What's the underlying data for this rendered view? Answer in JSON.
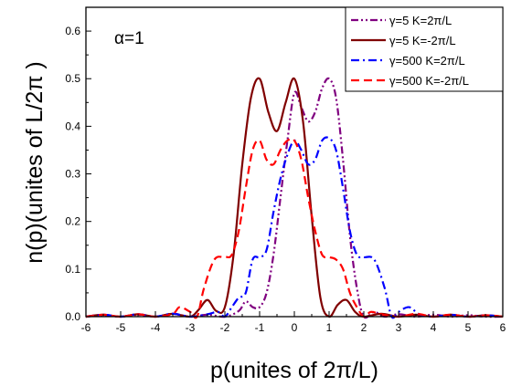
{
  "chart_data": {
    "type": "line",
    "xlabel": "p(unites of 2π/L)",
    "ylabel": "n(p)(unites of L/2π )",
    "xlim": [
      -6,
      6
    ],
    "ylim": [
      0,
      0.65
    ],
    "xticks": [
      -6,
      -5,
      -4,
      -3,
      -2,
      -1,
      0,
      1,
      2,
      3,
      4,
      5,
      6
    ],
    "xtick_labels": [
      "-6",
      "-5",
      "-4",
      "-3",
      "-2",
      "-1",
      "0",
      "1",
      "2",
      "3",
      "4",
      "5",
      "6"
    ],
    "yticks": [
      0.0,
      0.1,
      0.2,
      0.3,
      0.4,
      0.5,
      0.6
    ],
    "ytick_labels": [
      "0.0",
      "0.1",
      "0.2",
      "0.3",
      "0.4",
      "0.5",
      "0.6"
    ],
    "annotation": "α=1",
    "grid": false,
    "legend_position": "top-right",
    "series": [
      {
        "name": "γ=5 K=2π/L",
        "color": "#800080",
        "dash": "dash-dot-dot",
        "x": [
          -6,
          -5.5,
          -5,
          -4.5,
          -4,
          -3.5,
          -3,
          -2.5,
          -2.0,
          -1.6,
          -1.4,
          -1.2,
          -1.0,
          -0.8,
          -0.6,
          -0.4,
          -0.2,
          0.0,
          0.2,
          0.4,
          0.6,
          0.8,
          1.0,
          1.2,
          1.4,
          1.6,
          1.8,
          2.0,
          2.3,
          2.6,
          3.0,
          3.5,
          4.0,
          4.5,
          5.0,
          5.5,
          6.0
        ],
        "values": [
          0.0,
          0.003,
          0.0,
          0.004,
          0.0,
          0.006,
          0.0,
          0.004,
          0.0,
          0.012,
          0.032,
          0.02,
          0.02,
          0.05,
          0.13,
          0.25,
          0.37,
          0.47,
          0.44,
          0.41,
          0.43,
          0.48,
          0.5,
          0.46,
          0.33,
          0.17,
          0.06,
          0.0,
          0.01,
          0.0,
          0.005,
          0.0,
          0.004,
          0.0,
          0.003,
          0.0,
          0.0
        ]
      },
      {
        "name": "γ=5 K=-2π/L",
        "color": "#800000",
        "dash": "solid",
        "x": [
          -6,
          -5.5,
          -5,
          -4.5,
          -4,
          -3.5,
          -3,
          -2.75,
          -2.5,
          -2.25,
          -2.0,
          -1.75,
          -1.5,
          -1.25,
          -1.0,
          -0.75,
          -0.5,
          -0.25,
          0.0,
          0.25,
          0.5,
          0.75,
          1.0,
          1.25,
          1.5,
          1.75,
          2.0,
          2.5,
          3.0,
          3.5,
          4.0,
          4.5,
          5.0,
          5.5,
          6.0
        ],
        "values": [
          0.0,
          0.004,
          0.0,
          0.005,
          0.0,
          0.006,
          0.0,
          0.015,
          0.035,
          0.012,
          0.02,
          0.13,
          0.32,
          0.46,
          0.5,
          0.43,
          0.39,
          0.45,
          0.5,
          0.41,
          0.21,
          0.04,
          0.0,
          0.025,
          0.035,
          0.01,
          0.0,
          0.006,
          0.0,
          0.004,
          0.0,
          0.004,
          0.0,
          0.003,
          0.0
        ]
      },
      {
        "name": "γ=500 K=2π/L",
        "color": "#0000ff",
        "dash": "dash-dot",
        "x": [
          -6,
          -5.5,
          -5,
          -4.5,
          -4,
          -3.5,
          -3,
          -2.5,
          -2.2,
          -2.0,
          -1.8,
          -1.6,
          -1.4,
          -1.2,
          -1.0,
          -0.8,
          -0.6,
          -0.4,
          -0.2,
          0.0,
          0.2,
          0.4,
          0.6,
          0.8,
          1.0,
          1.2,
          1.4,
          1.6,
          1.8,
          2.0,
          2.3,
          2.6,
          2.8,
          3.0,
          3.3,
          3.6,
          4.0,
          4.5,
          5.0,
          5.5,
          6.0
        ],
        "values": [
          0.0,
          0.004,
          0.0,
          0.005,
          0.0,
          0.006,
          0.0,
          0.005,
          0.01,
          0.0,
          0.02,
          0.04,
          0.05,
          0.12,
          0.125,
          0.14,
          0.22,
          0.29,
          0.34,
          0.37,
          0.35,
          0.32,
          0.33,
          0.37,
          0.375,
          0.35,
          0.27,
          0.18,
          0.13,
          0.125,
          0.12,
          0.06,
          0.0,
          0.01,
          0.02,
          0.005,
          0.0,
          0.004,
          0.0,
          0.003,
          0.0
        ]
      },
      {
        "name": "γ=500 K=-2π/L",
        "color": "#ff0000",
        "dash": "dash",
        "x": [
          -6,
          -5.5,
          -5,
          -4.5,
          -4,
          -3.5,
          -3.3,
          -3.0,
          -2.8,
          -2.6,
          -2.3,
          -2.0,
          -1.8,
          -1.6,
          -1.4,
          -1.2,
          -1.0,
          -0.8,
          -0.6,
          -0.4,
          -0.2,
          0.0,
          0.2,
          0.4,
          0.6,
          0.8,
          1.0,
          1.2,
          1.4,
          1.6,
          1.8,
          2.0,
          2.2,
          2.5,
          3.0,
          3.5,
          4.0,
          4.5,
          5.0,
          5.5,
          6.0
        ],
        "values": [
          0.0,
          0.004,
          0.0,
          0.005,
          0.0,
          0.006,
          0.02,
          0.01,
          0.0,
          0.06,
          0.12,
          0.125,
          0.13,
          0.18,
          0.27,
          0.35,
          0.37,
          0.33,
          0.32,
          0.35,
          0.37,
          0.37,
          0.33,
          0.25,
          0.18,
          0.13,
          0.125,
          0.12,
          0.1,
          0.05,
          0.02,
          0.0,
          0.01,
          0.005,
          0.0,
          0.006,
          0.0,
          0.004,
          0.0,
          0.003,
          0.0
        ]
      }
    ]
  }
}
